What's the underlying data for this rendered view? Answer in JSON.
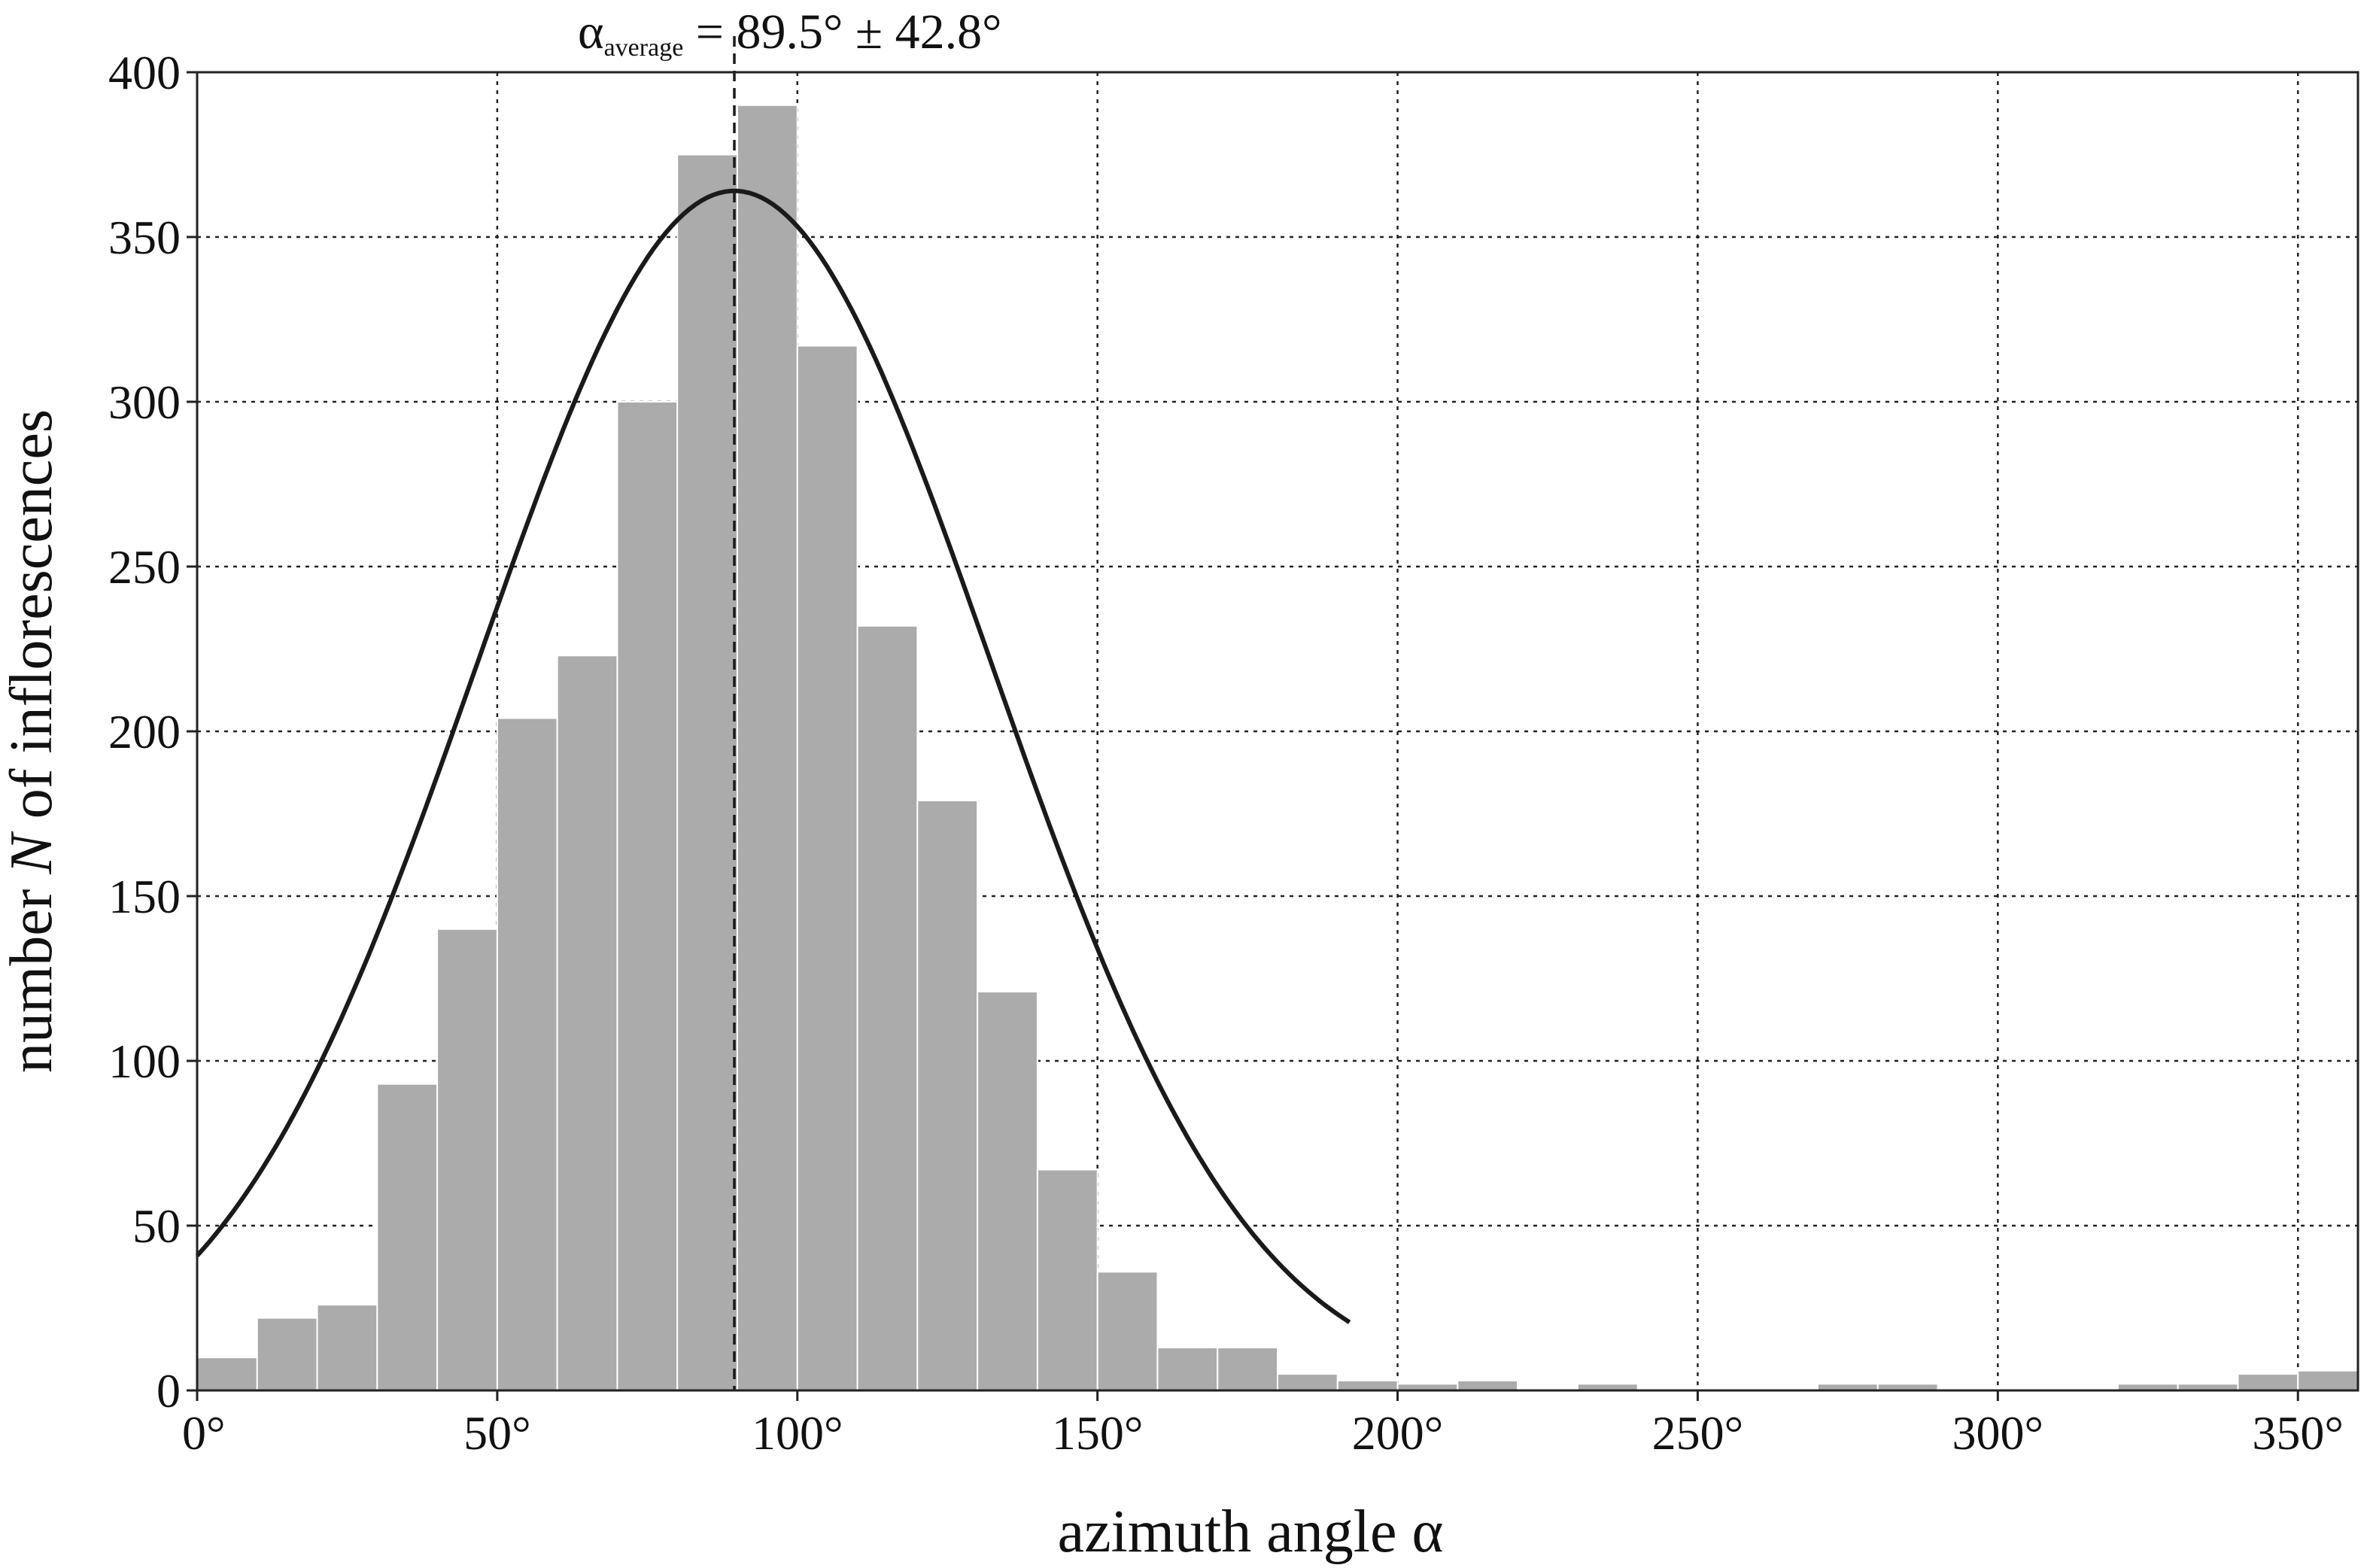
{
  "chart_data": {
    "type": "bar",
    "title": "",
    "xlabel_prefix": "azimuth angle ",
    "xlabel_symbol": "α",
    "ylabel_prefix": "number ",
    "ylabel_symbol": "N",
    "ylabel_suffix": " of inflorescences",
    "xlim": [
      0,
      360
    ],
    "ylim": [
      0,
      400
    ],
    "grid": true,
    "bin_width": 10,
    "bins": [
      {
        "x0": 0,
        "x1": 10,
        "value": 10
      },
      {
        "x0": 10,
        "x1": 20,
        "value": 22
      },
      {
        "x0": 20,
        "x1": 30,
        "value": 26
      },
      {
        "x0": 30,
        "x1": 40,
        "value": 93
      },
      {
        "x0": 40,
        "x1": 50,
        "value": 140
      },
      {
        "x0": 50,
        "x1": 60,
        "value": 204
      },
      {
        "x0": 60,
        "x1": 70,
        "value": 223
      },
      {
        "x0": 70,
        "x1": 80,
        "value": 300
      },
      {
        "x0": 80,
        "x1": 90,
        "value": 375
      },
      {
        "x0": 90,
        "x1": 100,
        "value": 390
      },
      {
        "x0": 100,
        "x1": 110,
        "value": 317
      },
      {
        "x0": 110,
        "x1": 120,
        "value": 232
      },
      {
        "x0": 120,
        "x1": 130,
        "value": 179
      },
      {
        "x0": 130,
        "x1": 140,
        "value": 121
      },
      {
        "x0": 140,
        "x1": 150,
        "value": 67
      },
      {
        "x0": 150,
        "x1": 160,
        "value": 36
      },
      {
        "x0": 160,
        "x1": 170,
        "value": 13
      },
      {
        "x0": 170,
        "x1": 180,
        "value": 13
      },
      {
        "x0": 180,
        "x1": 190,
        "value": 5
      },
      {
        "x0": 190,
        "x1": 200,
        "value": 3
      },
      {
        "x0": 200,
        "x1": 210,
        "value": 2
      },
      {
        "x0": 210,
        "x1": 220,
        "value": 3
      },
      {
        "x0": 220,
        "x1": 230,
        "value": 0
      },
      {
        "x0": 230,
        "x1": 240,
        "value": 2
      },
      {
        "x0": 240,
        "x1": 250,
        "value": 0
      },
      {
        "x0": 250,
        "x1": 260,
        "value": 0
      },
      {
        "x0": 260,
        "x1": 270,
        "value": 0
      },
      {
        "x0": 270,
        "x1": 280,
        "value": 2
      },
      {
        "x0": 280,
        "x1": 290,
        "value": 2
      },
      {
        "x0": 290,
        "x1": 300,
        "value": 0
      },
      {
        "x0": 300,
        "x1": 310,
        "value": 0
      },
      {
        "x0": 310,
        "x1": 320,
        "value": 0
      },
      {
        "x0": 320,
        "x1": 330,
        "value": 2
      },
      {
        "x0": 330,
        "x1": 340,
        "value": 2
      },
      {
        "x0": 340,
        "x1": 350,
        "value": 5
      },
      {
        "x0": 350,
        "x1": 360,
        "value": 6
      }
    ],
    "x_ticks": [
      0,
      50,
      100,
      150,
      200,
      250,
      300,
      350
    ],
    "x_tick_labels": [
      "0°",
      "50°",
      "100°",
      "150°",
      "200°",
      "250°",
      "300°",
      "350°"
    ],
    "y_ticks": [
      0,
      50,
      100,
      150,
      200,
      250,
      300,
      350,
      400
    ],
    "y_tick_labels": [
      "0",
      "50",
      "100",
      "150",
      "200",
      "250",
      "300",
      "350",
      "400"
    ],
    "x_grid": [
      0,
      50,
      100,
      150,
      200,
      250,
      300,
      350
    ],
    "y_grid": [
      0,
      50,
      100,
      150,
      200,
      250,
      300,
      350,
      400
    ],
    "fit_curve": {
      "type": "gaussian",
      "mean": 89.5,
      "sd": 42.8,
      "peak": 364,
      "x_range": [
        0,
        192
      ]
    },
    "mean_line": {
      "x": 89.5
    },
    "annotation": {
      "symbol": "α",
      "subscript": "average",
      "text": " = 89.5° ± 42.8°"
    },
    "colors": {
      "bars": "#ababab",
      "curve": "#1a1a1a",
      "grid": "#222222"
    }
  }
}
